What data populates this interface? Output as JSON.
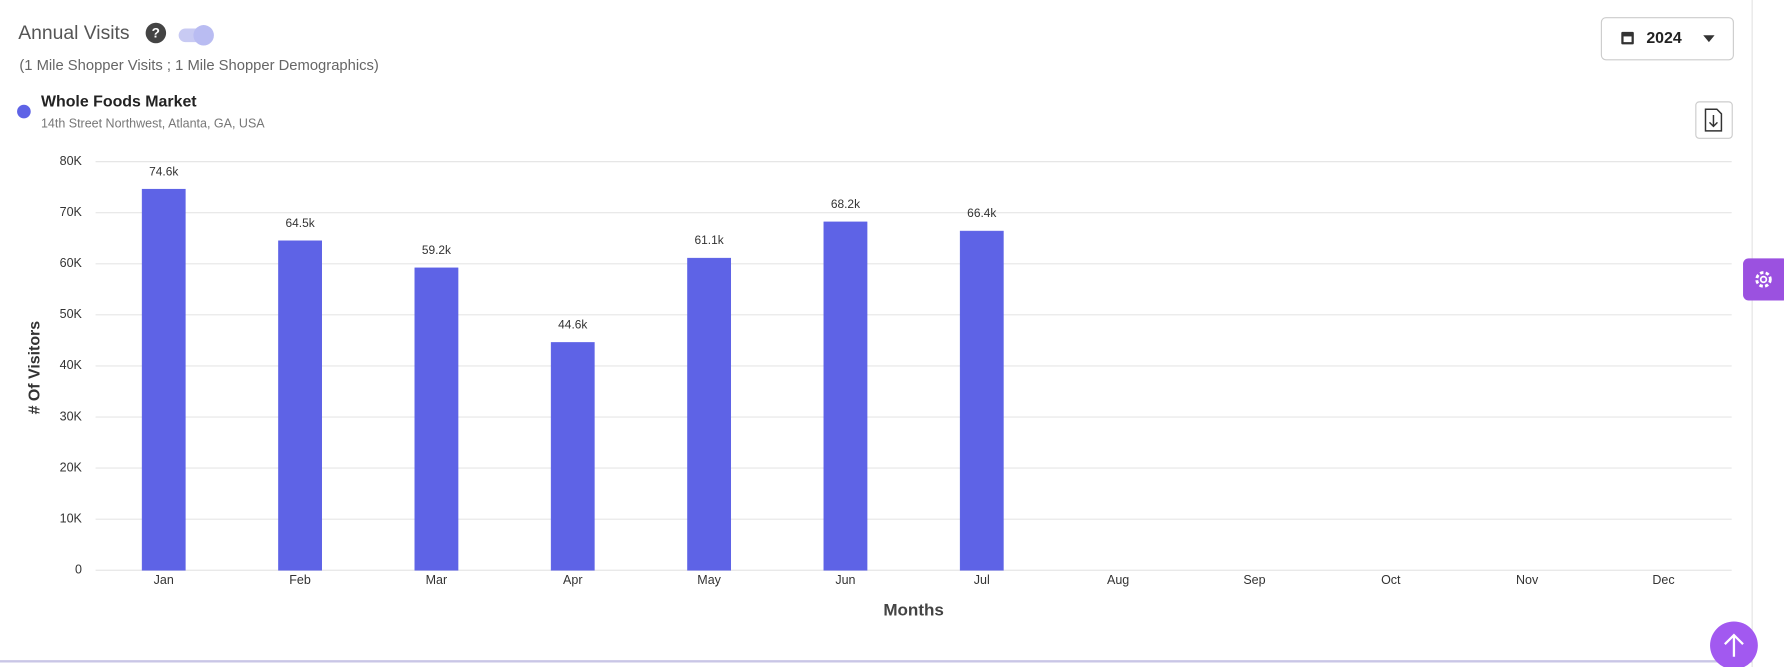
{
  "header": {
    "title": "Annual Visits",
    "subtitle": "(1 Mile Shopper Visits ; 1 Mile Shopper Demographics)",
    "year": "2024"
  },
  "chart_data": {
    "type": "bar",
    "x_label": "Months",
    "y_label": "# Of Visitors",
    "categories": [
      "Jan",
      "Feb",
      "Mar",
      "Apr",
      "May",
      "Jun",
      "Jul",
      "Aug",
      "Sep",
      "Oct",
      "Nov",
      "Dec"
    ],
    "series": [
      {
        "name": "Whole Foods Market",
        "location": "14th Street Northwest, Atlanta, GA, USA",
        "color": "#5e63e6",
        "values": [
          74600,
          64500,
          59200,
          44600,
          61100,
          68200,
          66400,
          0,
          0,
          0,
          0,
          0
        ],
        "value_labels": [
          "74.6k",
          "64.5k",
          "59.2k",
          "44.6k",
          "61.1k",
          "68.2k",
          "66.4k",
          null,
          null,
          null,
          null,
          null
        ]
      }
    ],
    "ylim": [
      0,
      80000
    ],
    "yticks": [
      0,
      {
        "value": 10000,
        "label": "10K"
      },
      {
        "value": 20000,
        "label": "20K"
      },
      {
        "value": 30000,
        "label": "30K"
      },
      {
        "value": 40000,
        "label": "40K"
      },
      {
        "value": 50000,
        "label": "50K"
      },
      {
        "value": 60000,
        "label": "60K"
      },
      {
        "value": 70000,
        "label": "70K"
      },
      {
        "value": 80000,
        "label": "80K"
      }
    ],
    "grid": true
  }
}
